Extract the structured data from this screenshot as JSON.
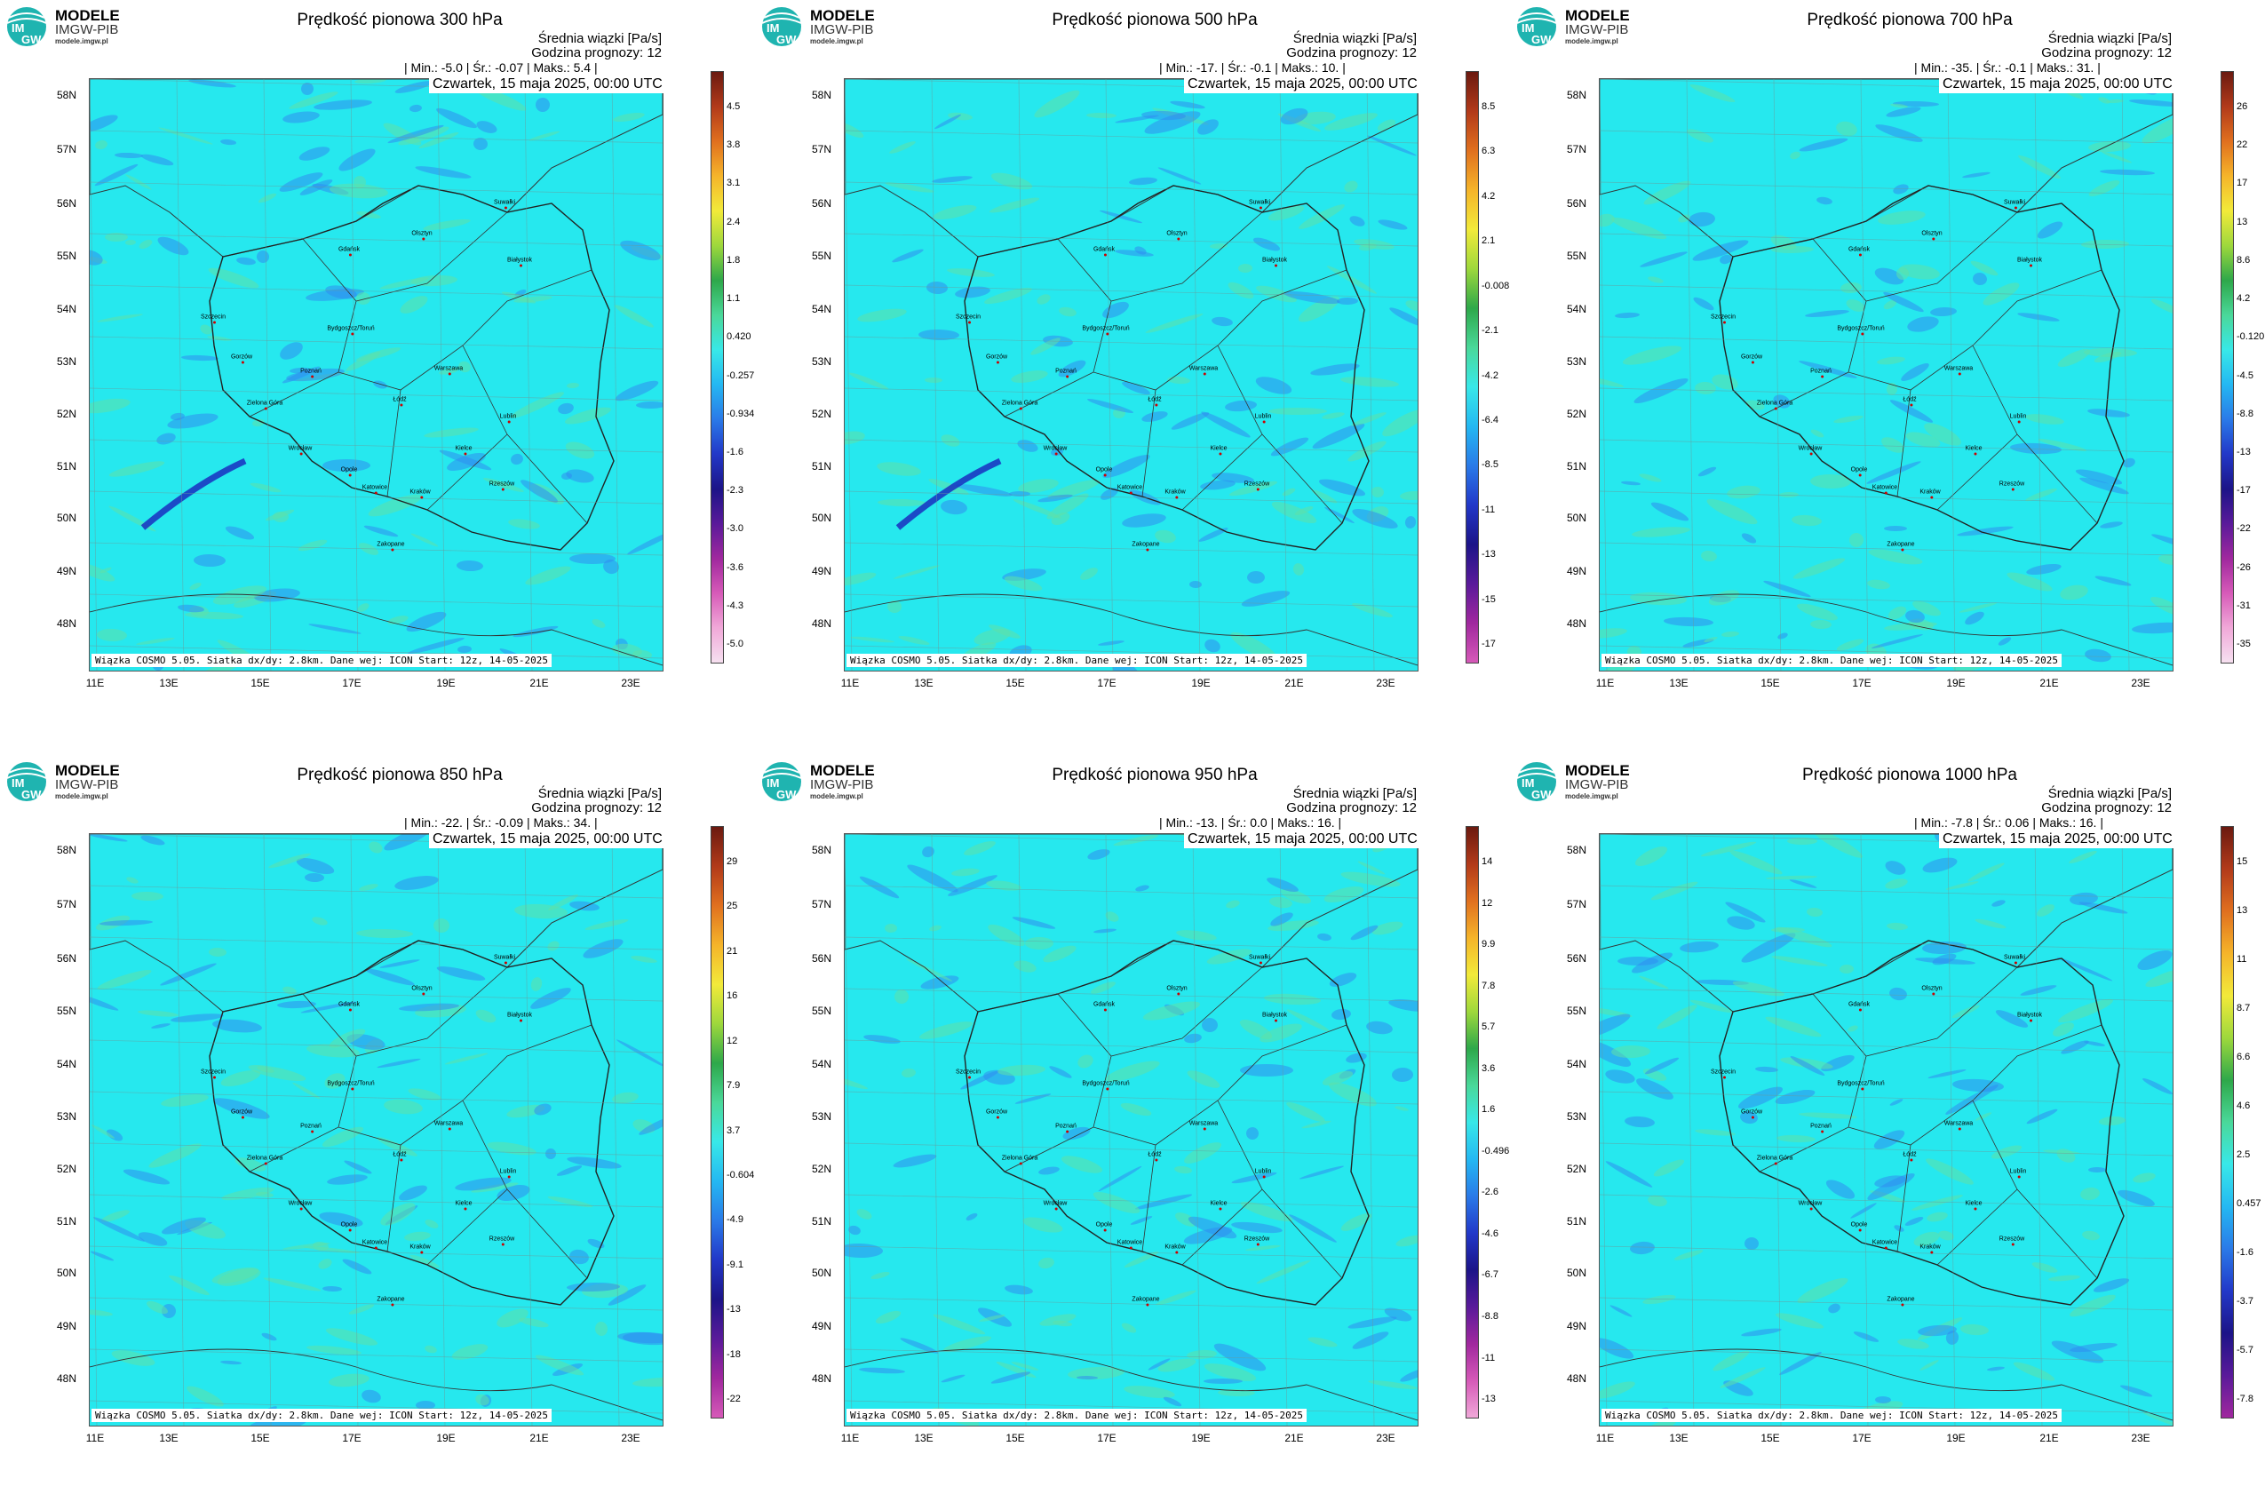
{
  "brand": {
    "line1": "MODELE",
    "line2": "IMGW-PIB",
    "line3": "modele.imgw.pl"
  },
  "common": {
    "units": "Średnia wiązki [Pa/s]",
    "forecast": "Godzina prognozy: 12",
    "date": "Czwartek, 15 maja 2025, 00:00 UTC",
    "footer": "Wiązka COSMO 5.05. Siatka dx/dy: 2.8km. Dane wej: ICON Start: 12z, 14-05-2025"
  },
  "axes": {
    "lat_labels": [
      "58N",
      "57N",
      "56N",
      "55N",
      "54N",
      "53N",
      "52N",
      "51N",
      "50N",
      "49N",
      "48N"
    ],
    "lon_labels": [
      "11E",
      "13E",
      "15E",
      "17E",
      "19E",
      "21E",
      "23E"
    ]
  },
  "cities": [
    "Gdańsk",
    "Olsztyn",
    "Suwałki",
    "Białystok",
    "Szczecin",
    "Bydgoszcz/Toruń",
    "Gorzów",
    "Poznań",
    "Warszawa",
    "Zielona Góra",
    "Łódź",
    "Lublin",
    "Wrocław",
    "Opole",
    "Kielce",
    "Rzeszów",
    "Katowice",
    "Kraków",
    "Zakopane"
  ],
  "panels": [
    {
      "title": "Prędkość pionowa 300 hPa",
      "stats": "| Min.:    -5.0 | Śr.:    -0.07 | Maks.:    5.4 |",
      "cbar": [
        "4.5",
        "3.8",
        "3.1",
        "2.4",
        "1.8",
        "1.1",
        "0.420",
        "-0.257",
        "-0.934",
        "-1.6",
        "-2.3",
        "-3.0",
        "-3.6",
        "-4.3",
        "-5.0"
      ]
    },
    {
      "title": "Prędkość pionowa 500 hPa",
      "stats": "| Min.:    -17. | Śr.:    -0.1 | Maks.:    10. |",
      "cbar": [
        "8.5",
        "6.3",
        "4.2",
        "2.1",
        "-0.008",
        "-2.1",
        "-4.2",
        "-6.4",
        "-8.5",
        "-11",
        "-13",
        "-15",
        "-17"
      ]
    },
    {
      "title": "Prędkość pionowa 700 hPa",
      "stats": "| Min.:    -35. | Śr.:    -0.1 | Maks.:    31. |",
      "cbar": [
        "26",
        "22",
        "17",
        "13",
        "8.6",
        "4.2",
        "-0.120",
        "-4.5",
        "-8.8",
        "-13",
        "-17",
        "-22",
        "-26",
        "-31",
        "-35"
      ]
    },
    {
      "title": "Prędkość pionowa 850 hPa",
      "stats": "| Min.:    -22. | Śr.:    -0.09 | Maks.:    34. |",
      "cbar": [
        "29",
        "25",
        "21",
        "16",
        "12",
        "7.9",
        "3.7",
        "-0.604",
        "-4.9",
        "-9.1",
        "-13",
        "-18",
        "-22"
      ]
    },
    {
      "title": "Prędkość pionowa 950 hPa",
      "stats": "| Min.:    -13. | Śr.:    0.0 | Maks.:    16. |",
      "cbar": [
        "14",
        "12",
        "9.9",
        "7.8",
        "5.7",
        "3.6",
        "1.6",
        "-0.496",
        "-2.6",
        "-4.6",
        "-6.7",
        "-8.8",
        "-11",
        "-13"
      ]
    },
    {
      "title": "Prędkość pionowa 1000 hPa",
      "stats": "| Min.:    -7.8 | Śr.:    0.06 | Maks.:    16. |",
      "cbar": [
        "15",
        "13",
        "11",
        "8.7",
        "6.6",
        "4.6",
        "2.5",
        "0.457",
        "-1.6",
        "-3.7",
        "-5.7",
        "-7.8"
      ]
    }
  ],
  "colors": {
    "field_main": "#26e8ee",
    "field_green": "#5fe0a8",
    "field_blue": "#2f8cf0",
    "deep_blue": "#1a2ec0"
  },
  "chart_data": [
    {
      "type": "heatmap",
      "title": "Prędkość pionowa 300 hPa",
      "units": "Pa/s",
      "min": -5.0,
      "mean": -0.07,
      "max": 5.4
    },
    {
      "type": "heatmap",
      "title": "Prędkość pionowa 500 hPa",
      "units": "Pa/s",
      "min": -17,
      "mean": -0.1,
      "max": 10
    },
    {
      "type": "heatmap",
      "title": "Prędkość pionowa 700 hPa",
      "units": "Pa/s",
      "min": -35,
      "mean": -0.1,
      "max": 31
    },
    {
      "type": "heatmap",
      "title": "Prędkość pionowa 850 hPa",
      "units": "Pa/s",
      "min": -22,
      "mean": -0.09,
      "max": 34
    },
    {
      "type": "heatmap",
      "title": "Prędkość pionowa 950 hPa",
      "units": "Pa/s",
      "min": -13,
      "mean": 0.0,
      "max": 16
    },
    {
      "type": "heatmap",
      "title": "Prędkość pionowa 1000 hPa",
      "units": "Pa/s",
      "min": -7.8,
      "mean": 0.06,
      "max": 16
    }
  ]
}
